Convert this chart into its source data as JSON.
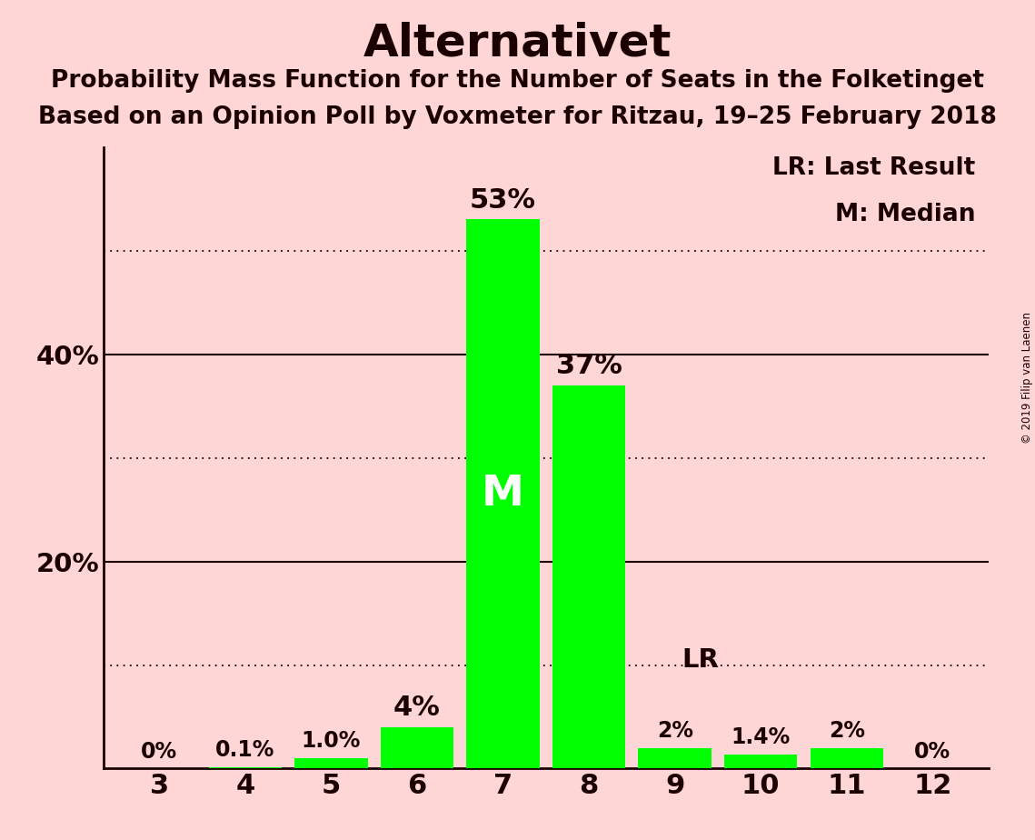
{
  "title": "Alternativet",
  "subtitle1": "Probability Mass Function for the Number of Seats in the Folketinget",
  "subtitle2": "Based on an Opinion Poll by Voxmeter for Ritzau, 19–25 February 2018",
  "copyright": "© 2019 Filip van Laenen",
  "categories": [
    3,
    4,
    5,
    6,
    7,
    8,
    9,
    10,
    11,
    12
  ],
  "values": [
    0.0,
    0.1,
    1.0,
    4.0,
    53.0,
    37.0,
    2.0,
    1.4,
    2.0,
    0.0
  ],
  "bar_labels": [
    "0%",
    "0.1%",
    "1.0%",
    "4%",
    "53%",
    "37%",
    "2%",
    "1.4%",
    "2%",
    "0%"
  ],
  "bar_color": "#00ff00",
  "background_color": "#ffd6d6",
  "text_color": "#1a0000",
  "median_seat": 7,
  "last_result_seat": 9,
  "ylim": [
    0,
    60
  ],
  "dotted_lines": [
    10,
    30,
    50
  ],
  "solid_lines": [
    20,
    40
  ],
  "legend_lr": "LR: Last Result",
  "legend_m": "M: Median",
  "label_fontsize_large": 22,
  "label_fontsize_small": 17,
  "tick_fontsize": 22,
  "ytick_fontsize": 21,
  "legend_fontsize": 19,
  "M_fontsize": 34,
  "LR_fontsize": 21
}
